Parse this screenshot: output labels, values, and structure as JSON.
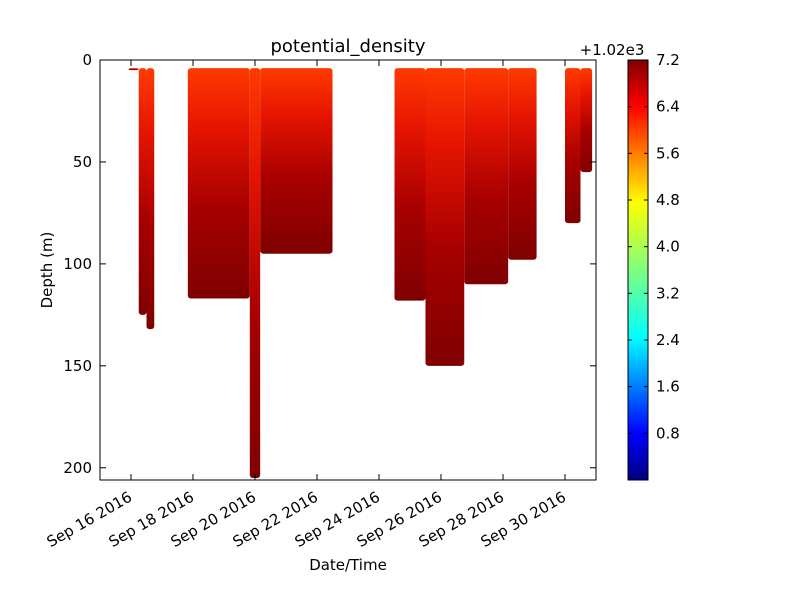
{
  "chart_data": {
    "type": "scatter",
    "title": "potential_density",
    "xlabel": "Date/Time",
    "ylabel": "Depth (m)",
    "x_range": [
      "2016-09-15T00:00",
      "2016-10-01T00:00"
    ],
    "y_range": [
      206,
      0
    ],
    "y_inverted": true,
    "x_ticks": [
      "Sep 16 2016",
      "Sep 18 2016",
      "Sep 20 2016",
      "Sep 22 2016",
      "Sep 24 2016",
      "Sep 26 2016",
      "Sep 28 2016",
      "Sep 30 2016"
    ],
    "y_ticks": [
      0,
      50,
      100,
      150,
      200
    ],
    "grid": false,
    "colormap": "jet",
    "colorbar": {
      "offset_label": "+1.02e3",
      "min": 0.0,
      "max": 7.2,
      "ticks": [
        "0.8",
        "1.6",
        "2.4",
        "3.2",
        "4.0",
        "4.8",
        "5.6",
        "6.4",
        "7.2"
      ]
    },
    "segments": [
      {
        "start": "2016-09-15T22:00",
        "end": "2016-09-16T06:00",
        "max_depth": 2
      },
      {
        "start": "2016-09-16T06:00",
        "end": "2016-09-16T12:00",
        "max_depth": 125
      },
      {
        "start": "2016-09-16T12:00",
        "end": "2016-09-16T18:00",
        "max_depth": 132
      },
      {
        "start": "2016-09-17T20:00",
        "end": "2016-09-19T20:00",
        "max_depth": 117
      },
      {
        "start": "2016-09-19T20:00",
        "end": "2016-09-20T04:00",
        "max_depth": 205
      },
      {
        "start": "2016-09-20T04:00",
        "end": "2016-09-22T12:00",
        "max_depth": 95
      },
      {
        "start": "2016-09-24T12:00",
        "end": "2016-09-25T12:00",
        "max_depth": 118
      },
      {
        "start": "2016-09-25T12:00",
        "end": "2016-09-26T18:00",
        "max_depth": 150
      },
      {
        "start": "2016-09-26T18:00",
        "end": "2016-09-28T04:00",
        "max_depth": 110
      },
      {
        "start": "2016-09-28T04:00",
        "end": "2016-09-29T02:00",
        "max_depth": 98
      },
      {
        "start": "2016-09-30T00:00",
        "end": "2016-09-30T12:00",
        "max_depth": 80
      },
      {
        "start": "2016-09-30T12:00",
        "end": "2016-09-30T21:00",
        "max_depth": 55
      }
    ],
    "surface_value": 6.3,
    "bottom_value": 7.2
  }
}
